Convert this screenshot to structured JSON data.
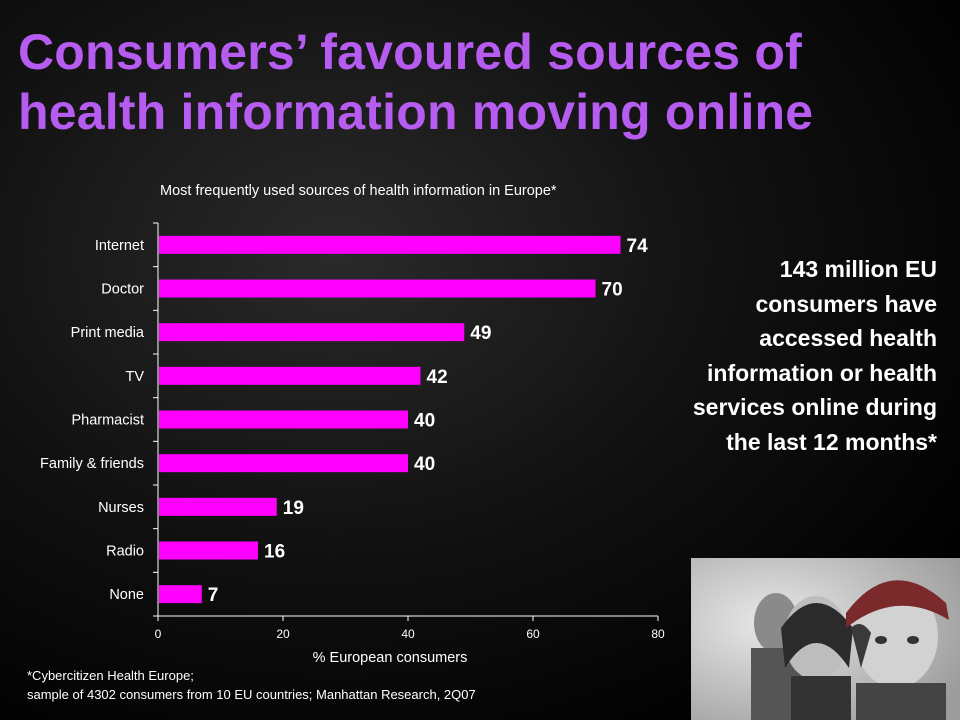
{
  "title": "Consumers’ favoured sources of health information moving online",
  "subtitle": "Most frequently used sources of health information in Europe*",
  "callout": "143 million EU consumers have accessed health information or health services online during the last 12 months*",
  "footnote": {
    "line1": "*Cybercitizen Health Europe;",
    "line2": "sample of 4302 consumers from 10 EU countries; Manhattan Research, 2Q07"
  },
  "colors": {
    "title": "#b65cf0",
    "bar": "#ff00ff",
    "axis": "#ffffff"
  },
  "chart_data": {
    "type": "bar",
    "orientation": "horizontal",
    "categories": [
      "Internet",
      "Doctor",
      "Print media",
      "TV",
      "Pharmacist",
      "Family & friends",
      "Nurses",
      "Radio",
      "None"
    ],
    "values": [
      74,
      70,
      49,
      42,
      40,
      40,
      19,
      16,
      7
    ],
    "xlabel": "% European consumers",
    "xlim": [
      0,
      80
    ],
    "xticks": [
      0,
      20,
      40,
      60,
      80
    ],
    "grid": false
  }
}
